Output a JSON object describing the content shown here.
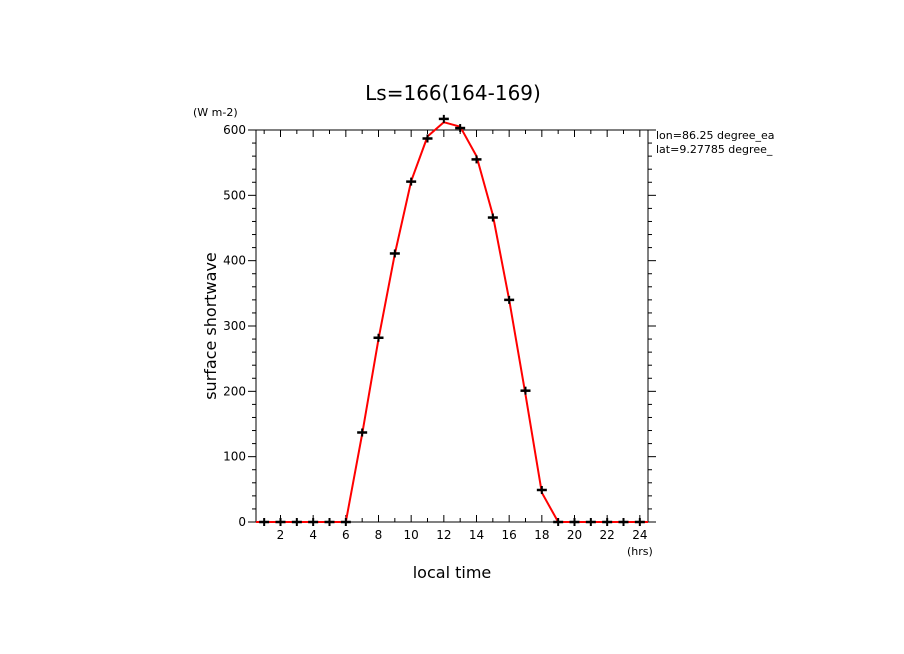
{
  "chart_data": {
    "type": "line",
    "title": "Ls=166(164-169)",
    "xlabel": "local time",
    "ylabel": "surface shortwave",
    "x_unit": "(hrs)",
    "y_unit": "(W m-2)",
    "xlim": [
      0.5,
      24.5
    ],
    "ylim": [
      0,
      600
    ],
    "xticks": [
      2,
      4,
      6,
      8,
      10,
      12,
      14,
      16,
      18,
      20,
      22,
      24
    ],
    "yticks": [
      0,
      100,
      200,
      300,
      400,
      500,
      600
    ],
    "annotations": [
      "lon=86.25 degree_ea",
      "lat=9.27785 degree_"
    ],
    "series": [
      {
        "style": "line",
        "color": "#ff0000",
        "x": [
          0.5,
          1,
          2,
          3,
          4,
          5,
          6,
          7,
          8,
          9,
          10,
          11,
          12,
          13,
          14,
          15,
          16,
          17,
          18,
          19,
          20,
          21,
          22,
          23,
          24,
          24.5
        ],
        "y": [
          0,
          0,
          0,
          0,
          0,
          0,
          0,
          135,
          280,
          410,
          522,
          590,
          612,
          605,
          560,
          470,
          340,
          195,
          45,
          0,
          0,
          0,
          0,
          0,
          0,
          0
        ]
      },
      {
        "style": "markers",
        "color": "#000000",
        "x": [
          1,
          2,
          3,
          4,
          5,
          6,
          7,
          8,
          9,
          10,
          11,
          12,
          13,
          14,
          15,
          16,
          17,
          18,
          19,
          20,
          21,
          22,
          23,
          24
        ],
        "y": [
          0,
          0,
          0,
          0,
          0,
          0,
          137,
          282,
          411,
          521,
          587,
          617,
          603,
          555,
          466,
          340,
          201,
          49,
          0,
          0,
          0,
          0,
          0,
          0
        ]
      }
    ]
  }
}
